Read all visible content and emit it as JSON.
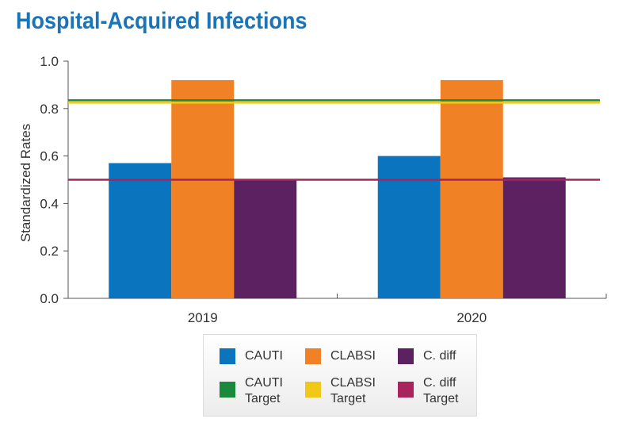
{
  "title": "Hospital-Acquired Infections",
  "chart_data": {
    "type": "bar",
    "title": "Hospital-Acquired Infections",
    "xlabel": "",
    "ylabel": "Standardized Rates",
    "ylim": [
      0,
      1.0
    ],
    "yticks": [
      "0.0",
      "0.2",
      "0.4",
      "0.6",
      "0.8",
      "1.0"
    ],
    "categories": [
      "2019",
      "2020"
    ],
    "series": [
      {
        "name": "CAUTI",
        "values": [
          0.57,
          0.6
        ],
        "color": "#0a74bf"
      },
      {
        "name": "CLABSI",
        "values": [
          0.92,
          0.92
        ],
        "color": "#f08125"
      },
      {
        "name": "C. diff",
        "values": [
          0.5,
          0.51
        ],
        "color": "#5c2160"
      }
    ],
    "targets": [
      {
        "name": "CAUTI Target",
        "value": 0.835,
        "color": "#1a8a3a"
      },
      {
        "name": "CLABSI Target",
        "value": 0.825,
        "color": "#f2c818"
      },
      {
        "name": "C. diff Target",
        "value": 0.5,
        "color": "#a8245c"
      }
    ],
    "grid": false,
    "legend": "bottom"
  },
  "legend": {
    "items": [
      {
        "line1": "CAUTI",
        "line2": "",
        "color": "#0a74bf"
      },
      {
        "line1": "CLABSI",
        "line2": "",
        "color": "#f08125"
      },
      {
        "line1": "C. diff",
        "line2": "",
        "color": "#5c2160"
      },
      {
        "line1": "CAUTI",
        "line2": "Target",
        "color": "#1a8a3a"
      },
      {
        "line1": "CLABSI",
        "line2": "Target",
        "color": "#f2c818"
      },
      {
        "line1": "C. diff",
        "line2": "Target",
        "color": "#a8245c"
      }
    ]
  }
}
